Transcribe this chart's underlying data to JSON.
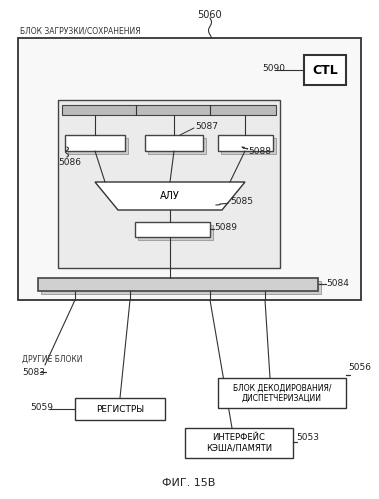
{
  "title": "ФИГ. 15В",
  "bg_color": "#ffffff",
  "block_label": "БЛОК ЗАГРУЗКИ/СОХРАНЕНИЯ",
  "text_other_blocks": "ДРУГИЕ БЛОКИ",
  "text_registers": "РЕГИСТРЫ",
  "text_cache": "ИНТЕРФЕЙС\nКЭША/ПАМЯТИ",
  "text_decode": "БЛОК ДЕКОДИРОВАНИЯ/\nДИСПЕТЧЕРИЗАЦИИ",
  "text_alu": "АЛУ",
  "text_ctl": "CTL",
  "lbl_5060": "5060",
  "lbl_5083": "5083",
  "lbl_5084": "5084",
  "lbl_5085": "5085",
  "lbl_5086": "5086",
  "lbl_5087": "5087",
  "lbl_5088": "5088",
  "lbl_5089": "5089",
  "lbl_5090": "5090",
  "lbl_5059": "5059",
  "lbl_5053": "5053",
  "lbl_5056": "5056"
}
